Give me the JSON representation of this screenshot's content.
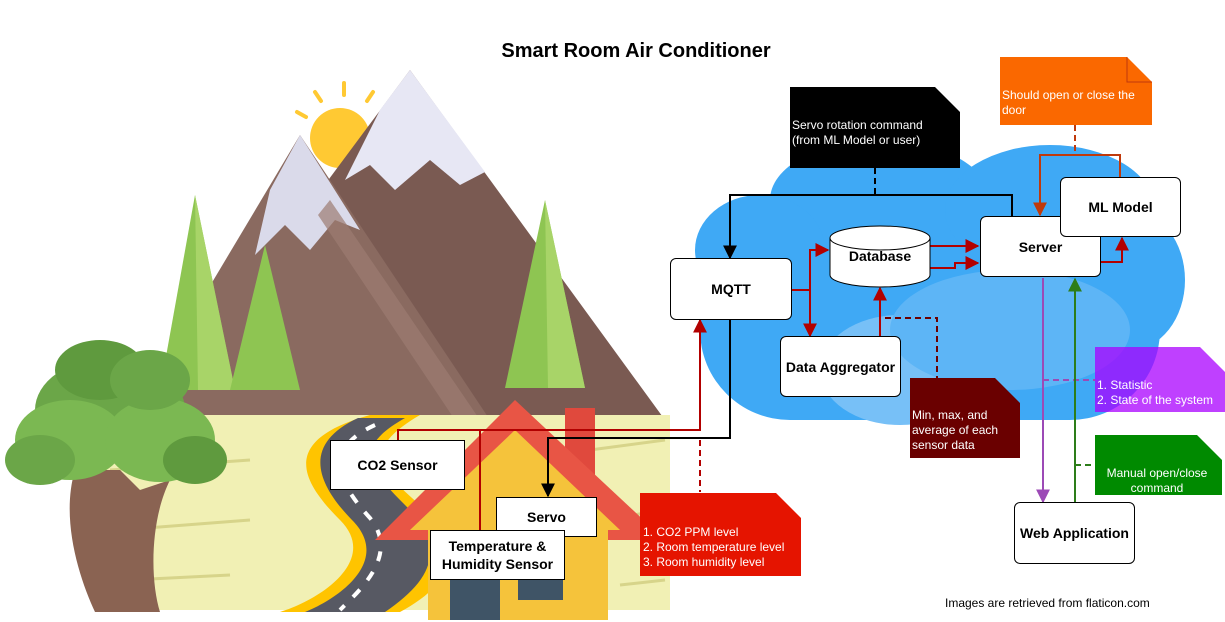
{
  "title": "Smart Room Air Conditioner",
  "nodes": {
    "mqtt": "MQTT",
    "database": "Database",
    "server": "Server",
    "ml_model": "ML Model",
    "data_aggregator": "Data Aggregator",
    "web_application": "Web Application",
    "co2_sensor": "CO2 Sensor",
    "servo": "Servo",
    "temp_humidity_sensor": "Temperature & Humidity Sensor"
  },
  "notes": {
    "servo_command": "Servo rotation command (from ML Model or user)",
    "door": "Should open or close the door",
    "aggregates": "Min, max, and average of each sensor data",
    "statistic_1": "1. Statistic",
    "statistic_2": "2. State of the system",
    "manual_command": "Manual open/close command",
    "sensor_1": "1. CO2 PPM level",
    "sensor_2": "2. Room temperature level",
    "sensor_3": "3. Room humidity level"
  },
  "footer": "Images are retrieved from flaticon.com",
  "colors": {
    "black_note": "#000000",
    "orange_note": "#fa6800",
    "dark_red_note": "#6a0000",
    "purple_note": "#aa00ff",
    "green_note": "#008a00",
    "red_note": "#e51400",
    "cloud_blue": "#3fa9f5",
    "arrow_red": "#b20000",
    "arrow_purple": "#9c4ab6",
    "arrow_green": "#2d7d1a"
  }
}
